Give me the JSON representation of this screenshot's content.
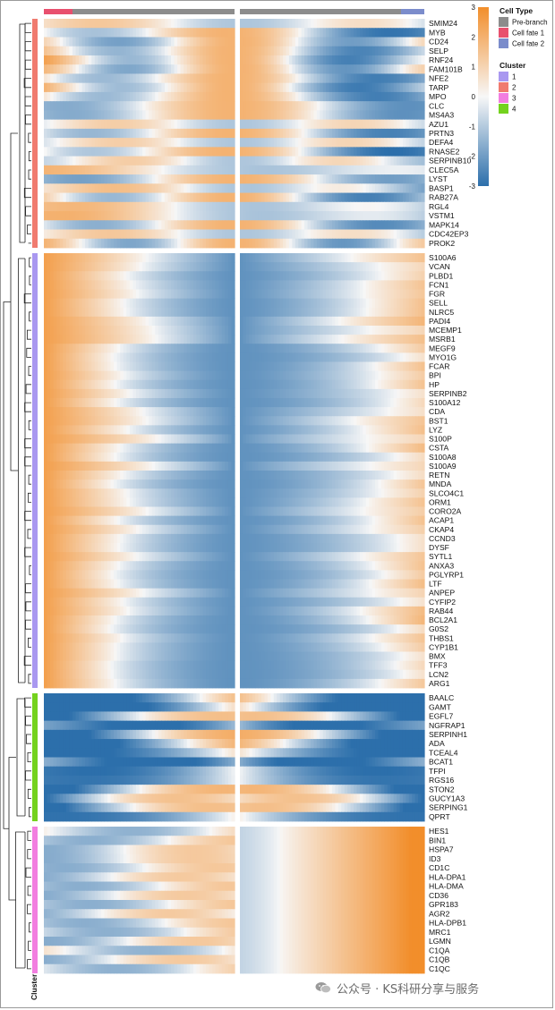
{
  "chart_data": {
    "type": "heatmap",
    "column_annotation": {
      "title": "Cell Type",
      "legend": [
        {
          "label": "Pre-branch",
          "color": "#8c8c8c"
        },
        {
          "label": "Cell fate 1",
          "color": "#e8506e"
        },
        {
          "label": "Cell fate 2",
          "color": "#7b8ccb"
        }
      ]
    },
    "row_annotation": {
      "title": "Cluster",
      "legend": [
        {
          "label": "1",
          "color": "#a998f0"
        },
        {
          "label": "2",
          "color": "#f07b6f"
        },
        {
          "label": "3",
          "color": "#f27ee0"
        },
        {
          "label": "4",
          "color": "#74d21e"
        }
      ]
    },
    "color_scale": {
      "range": [
        -3,
        3
      ],
      "ticks": [
        "3",
        "2",
        "1",
        "0",
        "-1",
        "-2",
        "-3"
      ],
      "colors": [
        "#2c6fab",
        "#f7f7f7",
        "#f28e2b"
      ]
    },
    "clusters": [
      {
        "id": "2",
        "genes": [
          "SMIM24",
          "MYB",
          "CD24",
          "SELP",
          "RNF24",
          "FAM101B",
          "NFE2",
          "TARP",
          "MPO",
          "CLC",
          "MS4A3",
          "AZU1",
          "PRTN3",
          "DEFA4",
          "RNASE2",
          "SERPINB10",
          "CLEC5A",
          "LYST",
          "BASP1",
          "RAB27A",
          "RGL4",
          "VSTM1",
          "MAPK14",
          "CDC42EP3",
          "PROK2"
        ]
      },
      {
        "id": "1",
        "genes": [
          "S100A6",
          "VCAN",
          "PLBD1",
          "FCN1",
          "FGR",
          "SELL",
          "NLRC5",
          "PADI4",
          "MCEMP1",
          "MSRB1",
          "MEGF9",
          "MYO1G",
          "FCAR",
          "BPI",
          "HP",
          "SERPINB2",
          "S100A12",
          "CDA",
          "BST1",
          "LYZ",
          "S100P",
          "CSTA",
          "S100A8",
          "S100A9",
          "RETN",
          "MNDA",
          "SLCO4C1",
          "ORM1",
          "CORO2A",
          "ACAP1",
          "CKAP4",
          "CCND3",
          "DYSF",
          "SYTL1",
          "ANXA3",
          "PGLYRP1",
          "LTF",
          "ANPEP",
          "CYFIP2",
          "RAB44",
          "BCL2A1",
          "G0S2",
          "THBS1",
          "CYP1B1",
          "BMX",
          "TFF3",
          "LCN2",
          "ARG1"
        ]
      },
      {
        "id": "4",
        "genes": [
          "BAALC",
          "GAMT",
          "EGFL7",
          "NGFRAP1",
          "SERPINH1",
          "ADA",
          "TCEAL4",
          "BCAT1",
          "TFPI",
          "RGS16",
          "STON2",
          "GUCY1A3",
          "SERPING1",
          "QPRT"
        ]
      },
      {
        "id": "3",
        "genes": [
          "HES1",
          "BIN1",
          "HSPA7",
          "ID3",
          "CD1C",
          "HLA-DPA1",
          "HLA-DMA",
          "CD36",
          "GPR183",
          "AGR2",
          "HLA-DPB1",
          "MRC1",
          "LGMN",
          "C1QA",
          "C1QB",
          "C1QC"
        ]
      }
    ]
  },
  "watermark": {
    "text": "公众号 · KS科研分享与服务"
  }
}
